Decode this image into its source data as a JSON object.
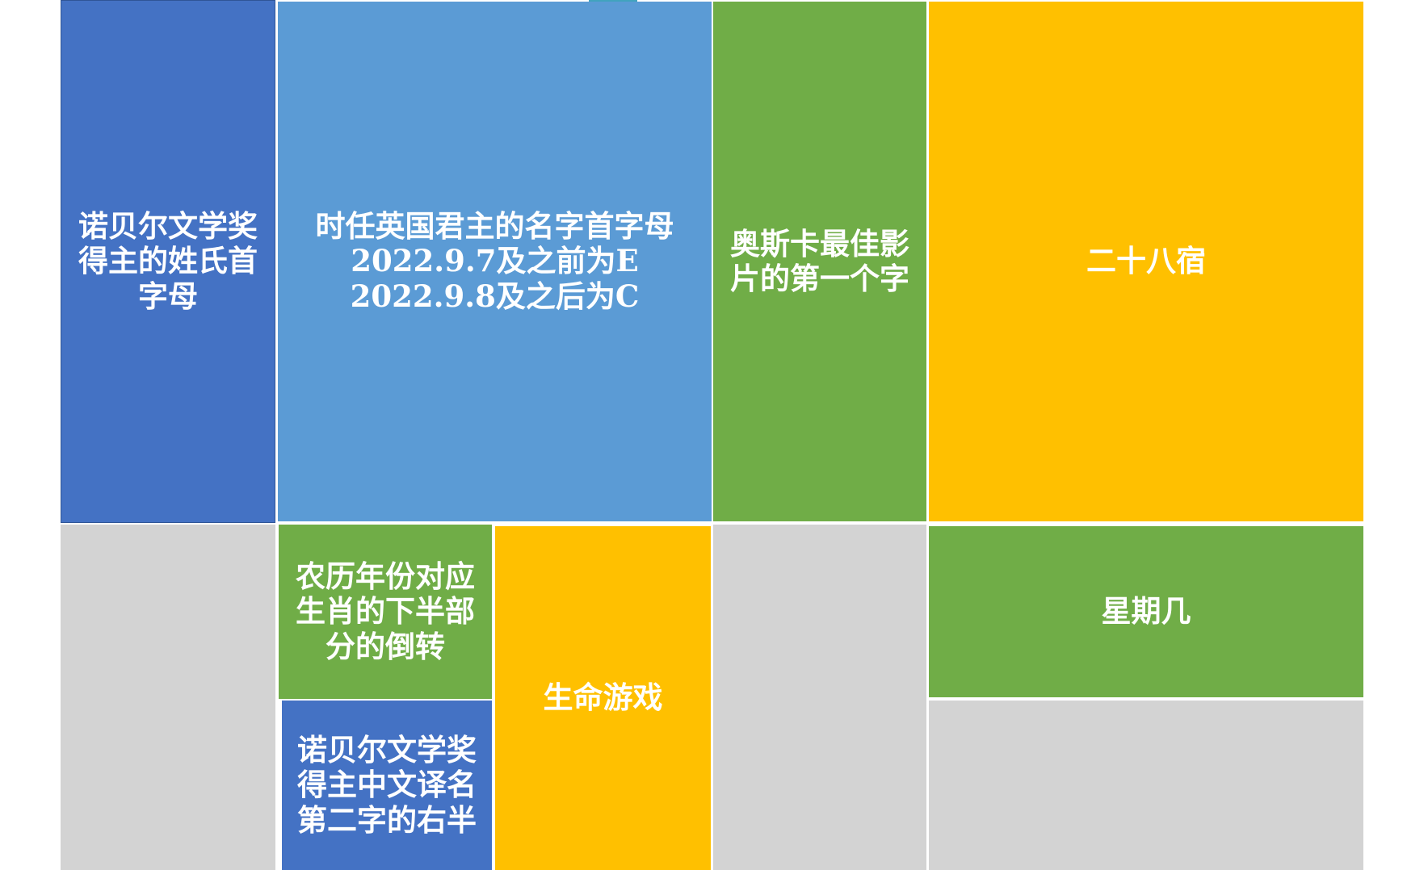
{
  "colors": {
    "dark_blue": "#4472C4",
    "light_blue": "#5B9BD5",
    "green": "#70AD47",
    "yellow": "#FFC000",
    "gray": "#D3D3D3",
    "accent": "#41A3BE"
  },
  "cells": {
    "nobel_initial": "诺贝尔文学奖\n得主的姓氏首\n字母",
    "monarch_initial": "时任英国君主的名字首字母\n2022.9.7及之前为E\n2022.9.8及之后为C",
    "oscar_first_char": "奥斯卡最佳影\n片的第一个字",
    "lunar_mansions": "二十八宿",
    "zodiac_flip": "农历年份对应\n生肖的下半部\n分的倒转",
    "nobel_chinese_name": "诺贝尔文学奖\n得主中文译名\n第二字的右半",
    "game_of_life": "生命游戏",
    "weekday": "星期几"
  }
}
